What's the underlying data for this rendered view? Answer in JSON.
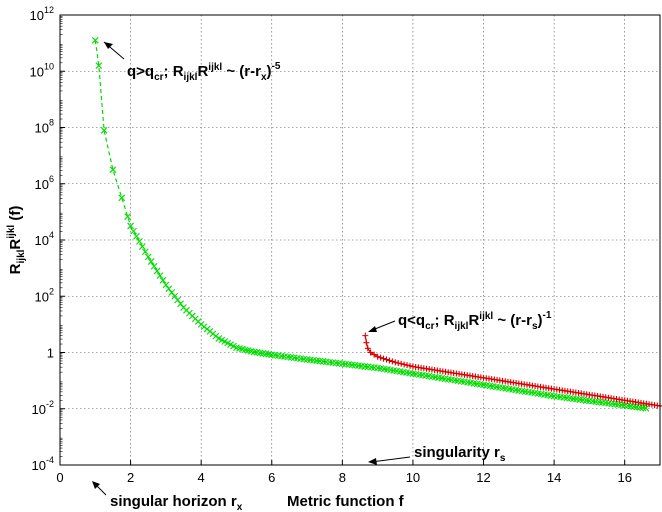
{
  "chart_data": {
    "type": "scatter",
    "xlim": [
      0,
      17
    ],
    "ylim_log10": [
      -4,
      12
    ],
    "y_scale": "log",
    "grid": true,
    "x_ticks": [
      0,
      2,
      4,
      6,
      8,
      10,
      12,
      14,
      16
    ],
    "x_tick_labels": [
      "0",
      "2",
      "4",
      "6",
      "8",
      "10",
      "12",
      "14",
      "16"
    ],
    "y_ticks_log10": [
      -4,
      -2,
      0,
      2,
      4,
      6,
      8,
      10,
      12
    ],
    "y_tick_labels": [
      {
        "base": "10",
        "exp": "-4"
      },
      {
        "base": "10",
        "exp": "-2"
      },
      {
        "base": "1",
        "exp": ""
      },
      {
        "base": "10",
        "exp": "2"
      },
      {
        "base": "10",
        "exp": "4"
      },
      {
        "base": "10",
        "exp": "6"
      },
      {
        "base": "10",
        "exp": "8"
      },
      {
        "base": "10",
        "exp": "10"
      },
      {
        "base": "10",
        "exp": "12"
      }
    ],
    "ylabel": {
      "p1": "R",
      "s1": "ijkl",
      "p2": "R",
      "s2": "ijkl",
      "p3": " (f)"
    },
    "xlabel": "Metric function f",
    "series": [
      {
        "color": "#00dd00",
        "marker": "x",
        "line": "dashed",
        "points": [
          [
            1.0,
            11.1
          ],
          [
            1.1,
            10.2
          ],
          [
            1.25,
            7.9
          ],
          [
            1.5,
            6.5
          ],
          [
            1.75,
            5.5
          ],
          [
            2.0,
            4.5
          ],
          [
            2.5,
            3.4
          ],
          [
            3.0,
            2.4
          ],
          [
            3.5,
            1.6
          ],
          [
            4.0,
            1.0
          ],
          [
            4.5,
            0.5
          ],
          [
            5.0,
            0.17
          ],
          [
            5.5,
            0.02
          ],
          [
            6.0,
            -0.08
          ],
          [
            7.0,
            -0.25
          ],
          [
            8.0,
            -0.4
          ],
          [
            9.0,
            -0.55
          ],
          [
            10.0,
            -0.75
          ],
          [
            11.0,
            -0.95
          ],
          [
            12.0,
            -1.15
          ],
          [
            13.0,
            -1.35
          ],
          [
            14.0,
            -1.55
          ],
          [
            15.0,
            -1.72
          ],
          [
            16.0,
            -1.88
          ],
          [
            16.6,
            -1.98
          ]
        ]
      },
      {
        "color": "#dd0000",
        "marker": "+",
        "line": "solid",
        "points": [
          [
            8.65,
            0.6
          ],
          [
            8.68,
            0.35
          ],
          [
            8.72,
            0.15
          ],
          [
            8.8,
            0.0
          ],
          [
            9.0,
            -0.15
          ],
          [
            9.5,
            -0.35
          ],
          [
            10.0,
            -0.5
          ],
          [
            11.0,
            -0.7
          ],
          [
            12.0,
            -0.9
          ],
          [
            13.0,
            -1.1
          ],
          [
            14.0,
            -1.3
          ],
          [
            15.0,
            -1.5
          ],
          [
            16.0,
            -1.7
          ],
          [
            17.0,
            -1.9
          ]
        ]
      }
    ],
    "annotations": {
      "green": {
        "a": "q>q",
        "b": "cr",
        "c": "; R",
        "d": "ijkl",
        "e": "R",
        "f": "ijkl",
        "g": " ~ (r-r",
        "h": "x",
        "i": ")",
        "j": "-5"
      },
      "red": {
        "a": "q<q",
        "b": "cr",
        "c": "; R",
        "d": "ijkl",
        "e": "R",
        "f": "ijkl",
        "g": " ~ (r-r",
        "h": "s",
        "i": ")",
        "j": "-1"
      },
      "singularity": {
        "a": "singularity r",
        "b": "s"
      },
      "horizon": {
        "a": "singular horizon r",
        "b": "x"
      }
    }
  }
}
